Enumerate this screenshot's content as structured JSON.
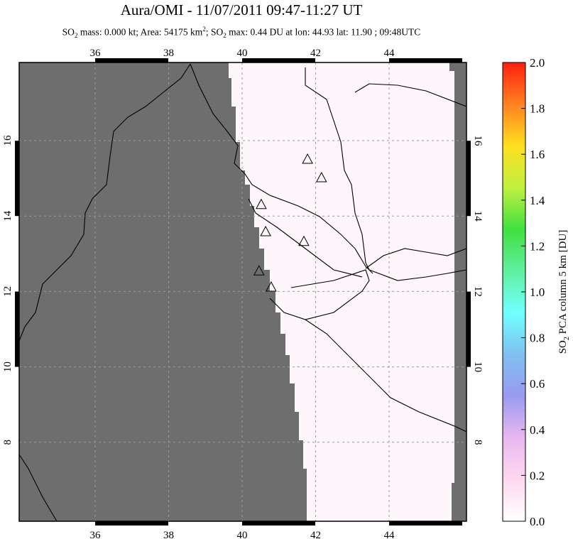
{
  "header": {
    "title": "Aura/OMI - 11/07/2011 09:47-11:27 UT",
    "subtitle_parts": [
      "SO",
      "2",
      " mass: 0.000 kt; Area: 54175 km",
      "2",
      "; SO",
      "2",
      " max: 0.44 DU at lon: 44.93 lat: 11.90 ; 09:48UTC"
    ]
  },
  "map": {
    "lon_range": [
      34,
      46
    ],
    "lat_range": [
      6,
      18
    ],
    "lon_ticks": [
      "36",
      "38",
      "40",
      "42",
      "44"
    ],
    "lat_ticks": [
      "8",
      "10",
      "12",
      "14",
      "16"
    ],
    "no_data_color": "#6e6e6e",
    "volcanoes": [
      {
        "lon": 41.78,
        "lat": 15.51
      },
      {
        "lon": 42.16,
        "lat": 15.02
      },
      {
        "lon": 40.52,
        "lat": 14.31
      },
      {
        "lon": 40.64,
        "lat": 13.59
      },
      {
        "lon": 41.68,
        "lat": 13.33
      },
      {
        "lon": 40.46,
        "lat": 12.55
      },
      {
        "lon": 40.79,
        "lat": 12.12
      }
    ]
  },
  "colorbar": {
    "label_parts": [
      "SO",
      "2",
      " PCA column 5 km [DU]"
    ],
    "ticks": [
      "0.0",
      "0.2",
      "0.4",
      "0.6",
      "0.8",
      "1.0",
      "1.2",
      "1.4",
      "1.6",
      "1.8",
      "2.0"
    ],
    "colors": [
      "#ffffff",
      "#ffd8f0",
      "#e8b8f0",
      "#9a9af0",
      "#80c0f0",
      "#70ffff",
      "#60f0a0",
      "#40e040",
      "#c0f040",
      "#ffe020",
      "#ff8020",
      "#ff2010"
    ]
  }
}
